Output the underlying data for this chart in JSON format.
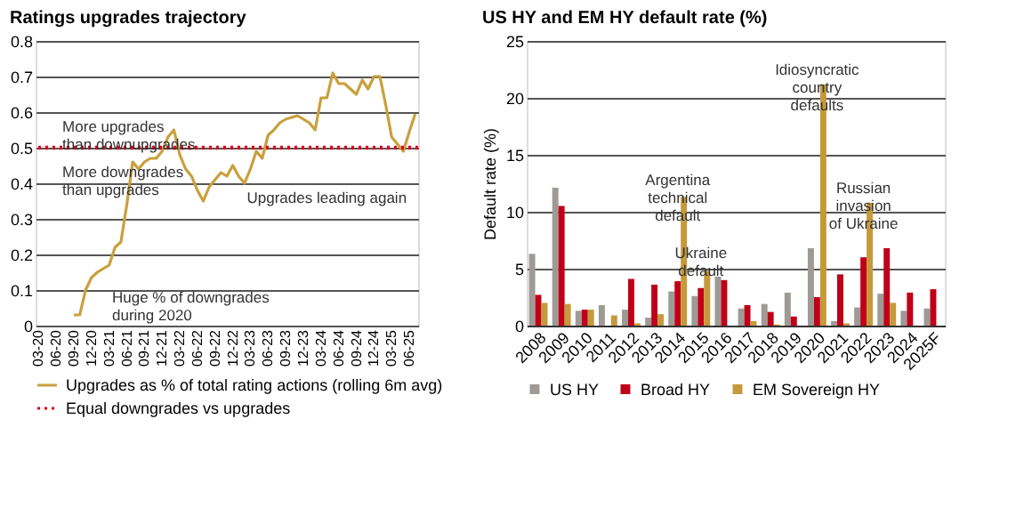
{
  "chart_data": [
    {
      "type": "line",
      "title": "Ratings upgrades trajectory",
      "categories": [
        "03-20",
        null,
        null,
        "06-20",
        null,
        null,
        "09-20",
        null,
        null,
        "12-20",
        null,
        null,
        "03-21",
        null,
        null,
        "06-21",
        null,
        null,
        "09-21",
        null,
        null,
        "12-21",
        null,
        null,
        "03-22",
        null,
        null,
        "06-22",
        null,
        null,
        "09-22",
        null,
        null,
        "12-22",
        null,
        null,
        "03-23",
        null,
        null,
        "06-23",
        null,
        null,
        "09-23",
        null,
        null,
        "12-23",
        null,
        null,
        "03-24",
        null,
        null,
        "06-24",
        null,
        null,
        "09-24",
        null,
        null,
        "12-24",
        null,
        null,
        "03-25",
        null,
        null,
        "06-25",
        null
      ],
      "series": [
        {
          "name": "Upgrades as % of total rating actions (rolling 6m avg)",
          "color": "#c9a03d",
          "values": [
            null,
            null,
            null,
            null,
            null,
            null,
            0.03,
            0.03,
            0.1,
            0.135,
            0.15,
            0.16,
            0.17,
            0.22,
            0.235,
            0.34,
            0.46,
            0.44,
            0.46,
            0.47,
            0.47,
            0.49,
            0.53,
            0.55,
            0.48,
            0.44,
            0.42,
            0.38,
            0.35,
            0.39,
            0.41,
            0.43,
            0.42,
            0.45,
            0.42,
            0.4,
            0.44,
            0.49,
            0.47,
            0.535,
            0.55,
            0.57,
            0.58,
            0.585,
            0.59,
            0.58,
            0.57,
            0.55,
            0.64,
            0.64,
            0.71,
            0.68,
            0.68,
            0.665,
            0.65,
            0.69,
            0.665,
            0.7,
            0.7,
            0.62,
            0.53,
            0.51,
            0.49,
            0.545,
            0.595
          ]
        }
      ],
      "ylim": [
        0,
        0.8
      ],
      "yticks": [
        {
          "value": 0,
          "label": "0"
        },
        0.1,
        0.2,
        0.3,
        0.4,
        0.5,
        0.6,
        0.7,
        0.8
      ],
      "grid": "y",
      "legend": "bottom",
      "ref_lines": [
        {
          "axis": "y",
          "value": 0.5,
          "label": "Equal downgrades vs upgrades",
          "color": "#e0001a",
          "line_style": "dotted"
        }
      ],
      "annotations": [
        "More upgrades\nthan downupgrades",
        "More downgrades\nthan upgrades",
        "Huge % of downgrades\nduring 2020",
        "Upgrades leading again"
      ]
    },
    {
      "type": "bar",
      "title": "US HY and EM HY default rate (%)",
      "ylabel": "Default rate (%)",
      "categories": [
        "2008",
        "2009",
        "2010",
        "2011",
        "2012",
        "2013",
        "2014",
        "2015",
        "2016",
        "2017",
        "2018",
        "2019",
        "2020",
        "2021",
        "2022",
        "2023",
        "2024",
        "2025F"
      ],
      "series": [
        {
          "name": "US HY",
          "color": "#9e9a95",
          "values": [
            6.3,
            12.1,
            1.3,
            1.8,
            1.4,
            0.7,
            3.0,
            2.6,
            4.3,
            1.5,
            1.9,
            2.9,
            6.8,
            0.4,
            1.6,
            2.8,
            1.3,
            1.5
          ]
        },
        {
          "name": "Broad HY",
          "color": "#c00018",
          "values": [
            2.7,
            10.5,
            1.4,
            null,
            4.1,
            3.6,
            3.9,
            3.3,
            4.0,
            1.8,
            1.2,
            0.8,
            2.5,
            4.5,
            6.0,
            6.8,
            2.9,
            3.2
          ]
        },
        {
          "name": "EM Sovereign HY",
          "color": "#c49a3a",
          "values": [
            2.0,
            1.9,
            1.4,
            0.9,
            0.2,
            1.0,
            11.3,
            4.8,
            null,
            0.4,
            0.1,
            null,
            21.2,
            0.2,
            10.8,
            2.0,
            null,
            null
          ]
        }
      ],
      "ylim": [
        0,
        25
      ],
      "yticks": [
        0,
        5,
        10,
        15,
        20,
        25
      ],
      "grid": "y",
      "legend": "bottom",
      "annotations": [
        {
          "text": "Argentina\ntechnical\ndefault",
          "x": "2014",
          "y": 12.0
        },
        {
          "text": "Ukraine\ndefault",
          "x": "2015",
          "y": 5.6
        },
        {
          "text": "Idiosyncratic\ncountry\ndefaults",
          "x": "2020",
          "y": 21.7
        },
        {
          "text": "Russian\ninvasion\nof Ukraine",
          "x": "2022",
          "y": 11.3
        }
      ]
    }
  ]
}
